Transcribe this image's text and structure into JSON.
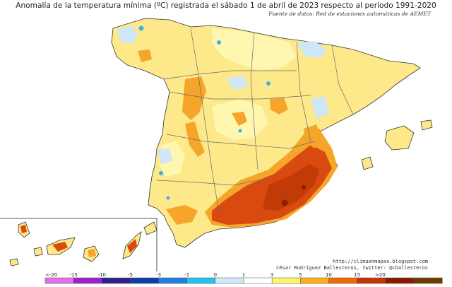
{
  "title": "Anomalía de la temperatura mínima (ºC) registrada el sábado 1 de abril de 2023 respecto al periodo 1991-2020",
  "source": "Fuente de datos: Red de estaciones automáticas de AEMET",
  "credits": {
    "url": "http://climaenmapas.blogspot.com",
    "author": "César Rodríguez Ballesteros, twitter: @cballesteros"
  },
  "legend": {
    "labels": [
      "<-20",
      "-15",
      "-10",
      "-5",
      "-3",
      "-1",
      "0",
      "1",
      "3",
      "5",
      "10",
      "15",
      ">20"
    ],
    "colors": [
      "#e070f0",
      "#a020d0",
      "#30208a",
      "#0a3fa8",
      "#1f7fe0",
      "#22c4ee",
      "#cfe8f7",
      "#ffffff",
      "#fff36a",
      "#ffad18",
      "#ee6a00",
      "#c83200",
      "#8a1800",
      "#6e3a00"
    ]
  },
  "palette": {
    "mainland": "#fde98a",
    "mild": "#fff7b0",
    "warm": "#f5a52a",
    "hot": "#d84a10",
    "veryhot": "#c23a05",
    "peak": "#8e1e00",
    "cool": "#cfe6f6",
    "cold": "#3cb0ea",
    "border": "#6a6a6a",
    "coast": "#333333"
  }
}
